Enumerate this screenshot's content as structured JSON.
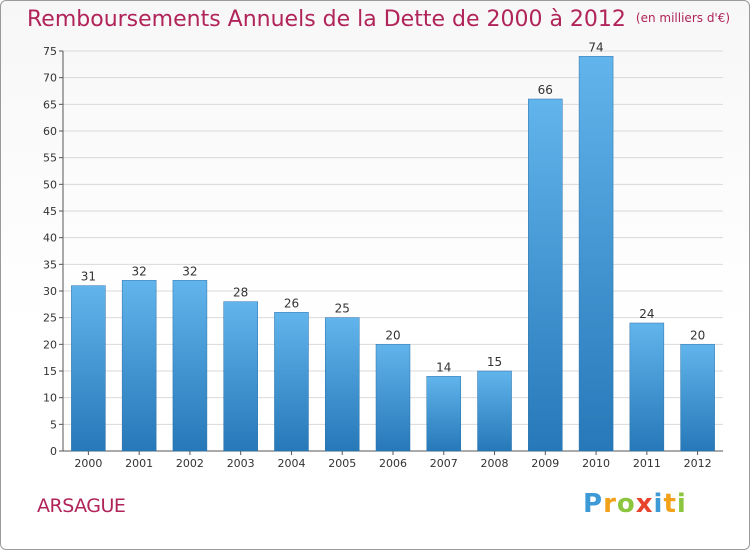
{
  "title": "Remboursements Annuels de la Dette de 2000 à 2012",
  "unit": "(en milliers d'€)",
  "commune": "ARSAGUE",
  "logo": {
    "letters": [
      "P",
      "r",
      "o",
      "x",
      "i",
      "t",
      "i"
    ],
    "colors": [
      "#3d9ad6",
      "#f2a21a",
      "#8cc63f",
      "#e8432c",
      "#3d9ad6",
      "#f2a21a",
      "#8cc63f"
    ]
  },
  "colors": {
    "title": "#b0245a",
    "bar_top": "#62b4ec",
    "bar_bottom": "#2678b8",
    "grid": "#d9d9d9"
  },
  "chart_data": {
    "type": "bar",
    "categories": [
      "2000",
      "2001",
      "2002",
      "2003",
      "2004",
      "2005",
      "2006",
      "2007",
      "2008",
      "2009",
      "2010",
      "2011",
      "2012"
    ],
    "values": [
      31,
      32,
      32,
      28,
      26,
      25,
      20,
      14,
      15,
      66,
      74,
      24,
      20
    ],
    "title": "Remboursements Annuels de la Dette de 2000 à 2012",
    "xlabel": "",
    "ylabel": "",
    "ylim": [
      0,
      75
    ],
    "yticks": [
      0,
      5,
      10,
      15,
      20,
      25,
      30,
      35,
      40,
      45,
      50,
      55,
      60,
      65,
      70,
      75
    ],
    "grid": true,
    "legend": "none"
  }
}
